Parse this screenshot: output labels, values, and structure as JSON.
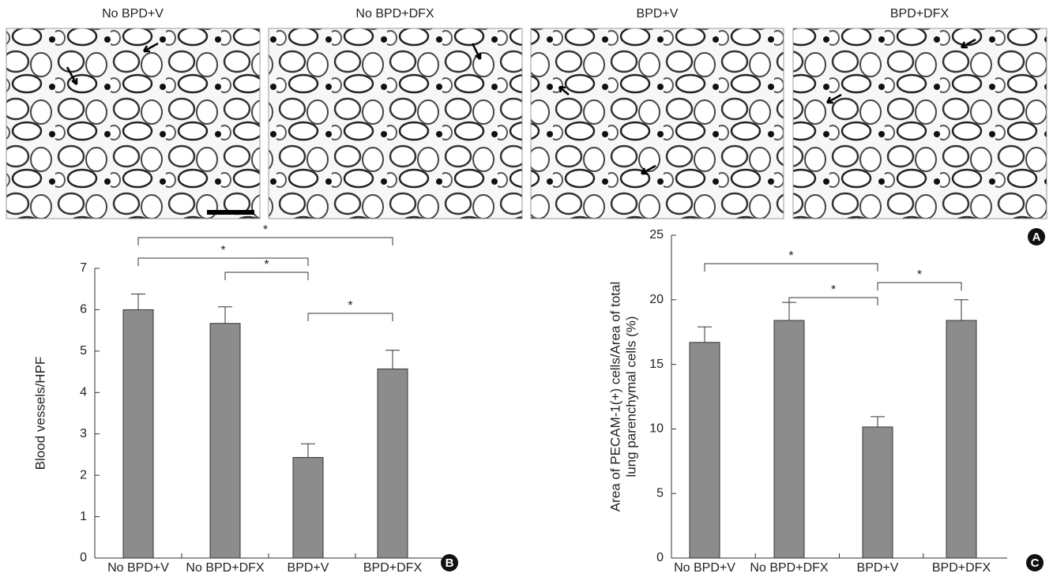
{
  "micrographs": {
    "labels": [
      "No BPD+V",
      "No BPD+DFX",
      "BPD+V",
      "BPD+DFX"
    ],
    "panel_label": "A"
  },
  "chart_data": [
    {
      "type": "bar",
      "panel_label": "B",
      "ylabel": [
        "Blood vessels/HPF"
      ],
      "categories": [
        "No BPD+V",
        "No BPD+DFX",
        "BPD+V",
        "BPD+DFX"
      ],
      "values": [
        6.0,
        5.67,
        2.43,
        4.57
      ],
      "errors": [
        0.38,
        0.4,
        0.33,
        0.45
      ],
      "color": "#8c8c8c",
      "ylim": [
        0,
        7
      ],
      "yticks": [
        0,
        1,
        2,
        3,
        4,
        5,
        6,
        7
      ],
      "comparisons": [
        {
          "groups": [
            0,
            3
          ],
          "label": "*"
        },
        {
          "groups": [
            0,
            2
          ],
          "label": "*"
        },
        {
          "groups": [
            1,
            2
          ],
          "label": "*"
        },
        {
          "groups": [
            2,
            3
          ],
          "label": "*"
        }
      ]
    },
    {
      "type": "bar",
      "panel_label": "C",
      "ylabel": [
        "Area of PECAM-1(+) cells/Area of total",
        "lung parenchymal cells (%)"
      ],
      "categories": [
        "No BPD+V",
        "No BPD+DFX",
        "BPD+V",
        "BPD+DFX"
      ],
      "values": [
        16.7,
        18.4,
        10.15,
        18.4
      ],
      "errors": [
        1.2,
        1.4,
        0.8,
        1.6
      ],
      "color": "#8c8c8c",
      "ylim": [
        0,
        25
      ],
      "yticks": [
        0,
        5,
        10,
        15,
        20,
        25
      ],
      "comparisons": [
        {
          "groups": [
            0,
            2
          ],
          "label": "*"
        },
        {
          "groups": [
            1,
            2
          ],
          "label": "*"
        },
        {
          "groups": [
            2,
            3
          ],
          "label": "*"
        }
      ]
    }
  ]
}
